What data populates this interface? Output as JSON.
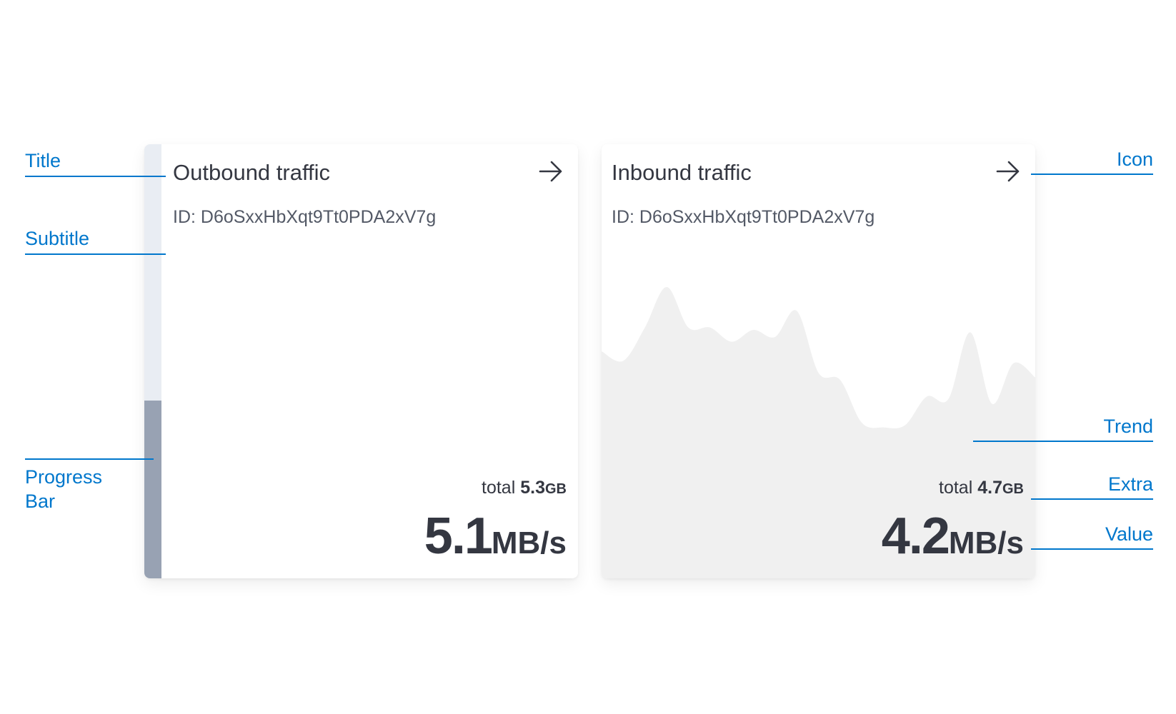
{
  "annotations": {
    "title": "Title",
    "subtitle": "Subtitle",
    "progress_bar": [
      "Progress",
      "Bar"
    ],
    "icon": "Icon",
    "trend": "Trend",
    "extra": "Extra",
    "value": "Value"
  },
  "cards": [
    {
      "title": "Outbound traffic",
      "subtitle": "ID: D6oSxxHbXqt9Tt0PDA2xV7g",
      "icon": "arrow-right-icon",
      "extra_prefix": "total",
      "extra_value": "5.3",
      "extra_unit": "GB",
      "value": "5.1",
      "unit": "MB/s",
      "progress_percent": 41
    },
    {
      "title": "Inbound traffic",
      "subtitle": "ID: D6oSxxHbXqt9Tt0PDA2xV7g",
      "icon": "arrow-right-icon",
      "extra_prefix": "total",
      "extra_value": "4.7",
      "extra_unit": "GB",
      "value": "4.2",
      "unit": "MB/s",
      "trend": [
        45,
        41,
        55,
        72,
        55,
        55,
        49,
        54,
        51,
        62,
        36,
        33,
        15,
        13,
        14,
        26,
        25,
        53,
        23,
        40,
        34
      ]
    }
  ],
  "colors": {
    "accent": "#0077cc",
    "text": "#343741",
    "progress_track": "#e9edf3",
    "progress_fill": "#98a2b3",
    "trend_fill": "#f0f0f0"
  }
}
